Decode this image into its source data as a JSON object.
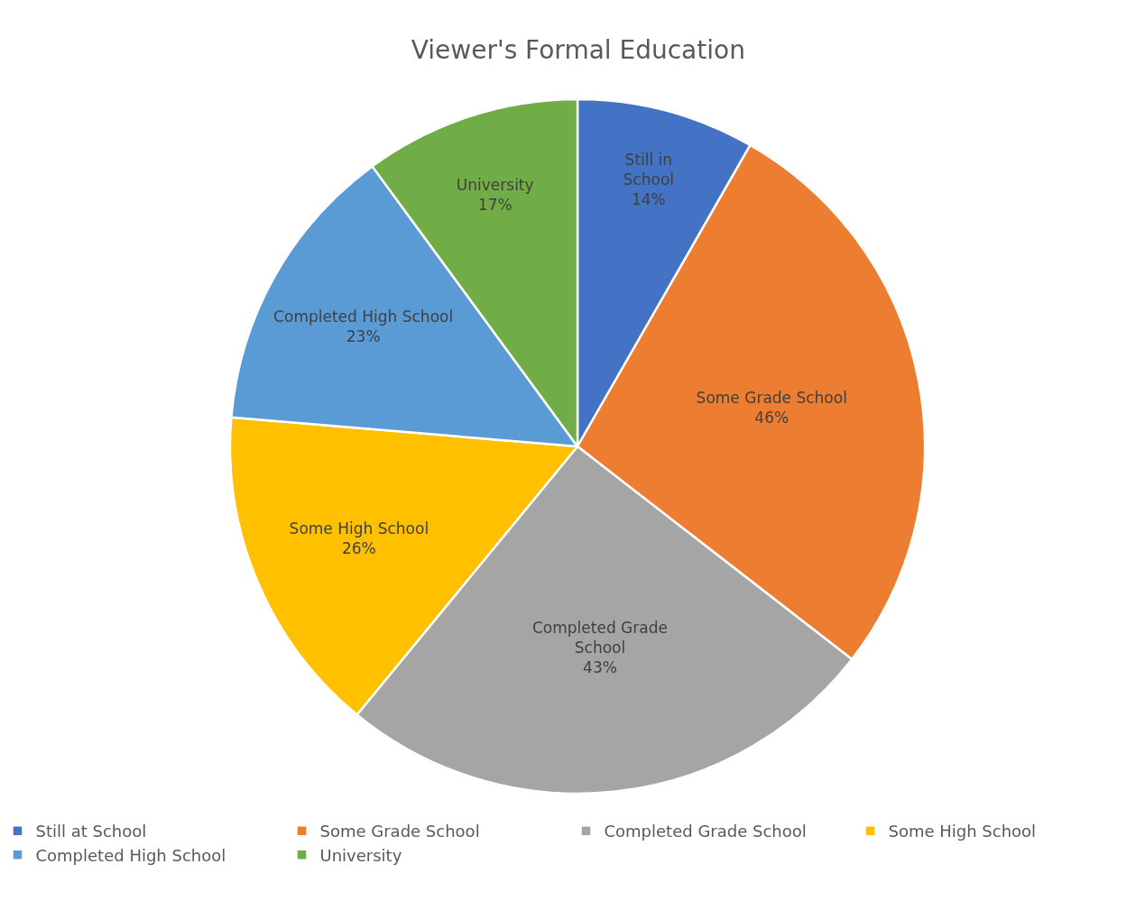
{
  "chart_data": {
    "type": "pie",
    "title": "Viewer's Formal Education",
    "categories": [
      "Still at School",
      "Some Grade School",
      "Completed Grade School",
      "Some High School",
      "Completed High School",
      "University"
    ],
    "values": [
      14,
      46,
      43,
      26,
      23,
      17
    ],
    "value_labels": [
      "Still in\nSchool\n14%",
      "Some Grade School\n46%",
      "Completed Grade\nSchool\n43%",
      "Some High School\n26%",
      "Completed High School\n23%",
      "University\n17%"
    ],
    "colors": [
      "#4472c4",
      "#ed7d31",
      "#a5a5a5",
      "#ffc000",
      "#5b9bd5",
      "#70ad47"
    ],
    "legend": "bottom"
  }
}
